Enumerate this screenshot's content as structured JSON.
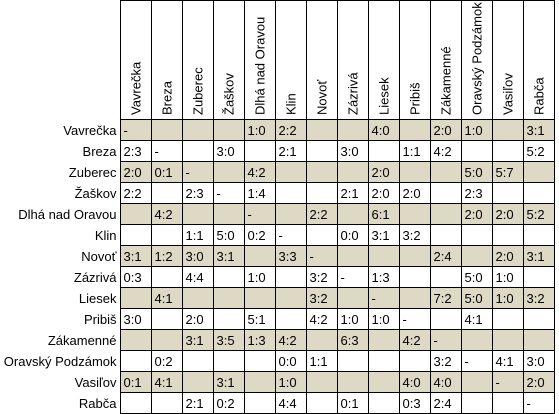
{
  "teams": [
    "Vavrečka",
    "Breza",
    "Zuberec",
    "Žaškov",
    "Dlhá nad Oravou",
    "Klin",
    "Novoť",
    "Zázrivá",
    "Liesek",
    "Pribiš",
    "Zákamenné",
    "Oravský Podzámok",
    "Vasiľov",
    "Rabča"
  ],
  "rows": [
    [
      "-",
      "",
      "",
      "",
      "1:0",
      "2:2",
      "",
      "",
      "4:0",
      "",
      "2:0",
      "1:0",
      "",
      "3:1"
    ],
    [
      "2:3",
      "-",
      "",
      "3:0",
      "",
      "2:1",
      "",
      "3:0",
      "",
      "1:1",
      "4:2",
      "",
      "",
      "5:2"
    ],
    [
      "2:0",
      "0:1",
      "-",
      "",
      "4:2",
      "",
      "",
      "",
      "2:0",
      "",
      "",
      "5:0",
      "5:7",
      ""
    ],
    [
      "2:2",
      "",
      "2:3",
      "-",
      "1:4",
      "",
      "",
      "2:1",
      "2:0",
      "2:0",
      "",
      "2:3",
      "",
      ""
    ],
    [
      "",
      "4:2",
      "",
      "",
      "-",
      "",
      "2:2",
      "",
      "6:1",
      "",
      "",
      "2:0",
      "2:0",
      "5:2"
    ],
    [
      "",
      "",
      "1:1",
      "5:0",
      "0:2",
      "-",
      "",
      "0:0",
      "3:1",
      "3:2",
      "",
      "",
      "",
      ""
    ],
    [
      "3:1",
      "1:2",
      "3:0",
      "3:1",
      "",
      "3:3",
      "-",
      "",
      "",
      "",
      "2:4",
      "",
      "2:0",
      "3:1"
    ],
    [
      "0:3",
      "",
      "4:4",
      "",
      "1:0",
      "",
      "3:2",
      "-",
      "1:3",
      "",
      "",
      "5:0",
      "1:0",
      ""
    ],
    [
      "",
      "4:1",
      "",
      "",
      "",
      "",
      "3:2",
      "",
      "-",
      "",
      "7:2",
      "5:0",
      "1:0",
      "3:2"
    ],
    [
      "3:0",
      "",
      "2:0",
      "",
      "5:1",
      "",
      "4:2",
      "1:0",
      "1:0",
      "-",
      "",
      "4:1",
      "",
      ""
    ],
    [
      "",
      "",
      "3:1",
      "3:5",
      "1:3",
      "4:2",
      "",
      "6:3",
      "",
      "4:2",
      "-",
      "",
      "",
      ""
    ],
    [
      "",
      "0:2",
      "",
      "",
      "",
      "0:0",
      "1:1",
      "",
      "",
      "",
      "3:2",
      "-",
      "4:1",
      "3:0"
    ],
    [
      "0:1",
      "4:1",
      "",
      "3:1",
      "",
      "1:0",
      "",
      "",
      "",
      "4:0",
      "4:0",
      "",
      "-",
      "2:0"
    ],
    [
      "",
      "",
      "2:1",
      "0:2",
      "",
      "4:4",
      "",
      "0:1",
      "",
      "0:3",
      "2:4",
      "",
      "",
      "-"
    ]
  ]
}
